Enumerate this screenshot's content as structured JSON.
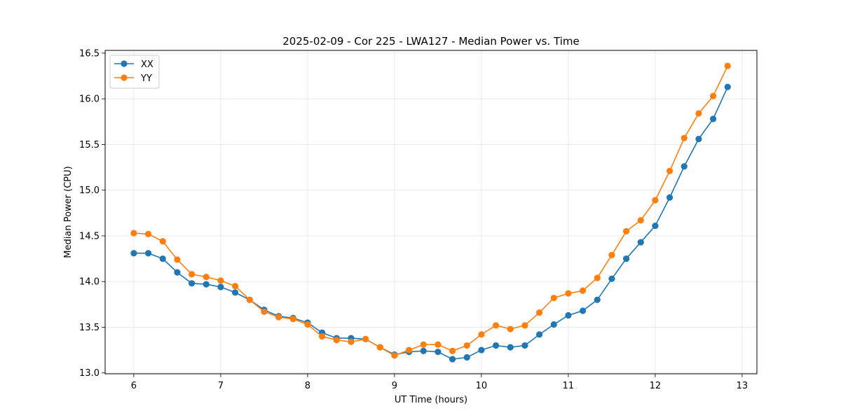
{
  "chart_data": {
    "type": "line",
    "title": "2025-02-09 - Cor 225 - LWA127 - Median Power vs. Time",
    "xlabel": "UT Time (hours)",
    "ylabel": "Median Power (CPU)",
    "xlim": [
      5.67,
      13.17
    ],
    "ylim": [
      12.99,
      16.53
    ],
    "xticks": [
      "6",
      "7",
      "8",
      "9",
      "10",
      "11",
      "12",
      "13"
    ],
    "yticks": [
      "13.0",
      "13.5",
      "14.0",
      "14.5",
      "15.0",
      "15.5",
      "16.0",
      "16.5"
    ],
    "grid": true,
    "legend_position": "top-left",
    "x": [
      6.0,
      6.1667,
      6.3333,
      6.5,
      6.6667,
      6.8333,
      7.0,
      7.1667,
      7.3333,
      7.5,
      7.6667,
      7.8333,
      8.0,
      8.1667,
      8.3333,
      8.5,
      8.6667,
      8.8333,
      9.0,
      9.1667,
      9.3333,
      9.5,
      9.6667,
      9.8333,
      10.0,
      10.1667,
      10.3333,
      10.5,
      10.6667,
      10.8333,
      11.0,
      11.1667,
      11.3333,
      11.5,
      11.6667,
      11.8333,
      12.0,
      12.1667,
      12.3333,
      12.5,
      12.6667,
      12.8333
    ],
    "series": [
      {
        "name": "XX",
        "color": "#1f77b4",
        "values": [
          14.31,
          14.31,
          14.25,
          14.1,
          13.98,
          13.97,
          13.94,
          13.88,
          13.8,
          13.69,
          13.62,
          13.6,
          13.55,
          13.44,
          13.38,
          13.38,
          13.37,
          13.28,
          13.2,
          13.23,
          13.24,
          13.23,
          13.15,
          13.17,
          13.25,
          13.3,
          13.28,
          13.3,
          13.42,
          13.53,
          13.63,
          13.68,
          13.8,
          14.03,
          14.25,
          14.43,
          14.61,
          14.92,
          15.26,
          15.56,
          15.78,
          16.13
        ]
      },
      {
        "name": "YY",
        "color": "#ff7f0e",
        "values": [
          14.53,
          14.52,
          14.44,
          14.24,
          14.08,
          14.05,
          14.01,
          13.95,
          13.8,
          13.67,
          13.61,
          13.59,
          13.53,
          13.4,
          13.36,
          13.34,
          13.37,
          13.28,
          13.19,
          13.25,
          13.31,
          13.31,
          13.24,
          13.3,
          13.42,
          13.52,
          13.48,
          13.52,
          13.66,
          13.82,
          13.87,
          13.9,
          14.04,
          14.29,
          14.55,
          14.67,
          14.89,
          15.21,
          15.57,
          15.84,
          16.03,
          16.36
        ]
      }
    ]
  }
}
